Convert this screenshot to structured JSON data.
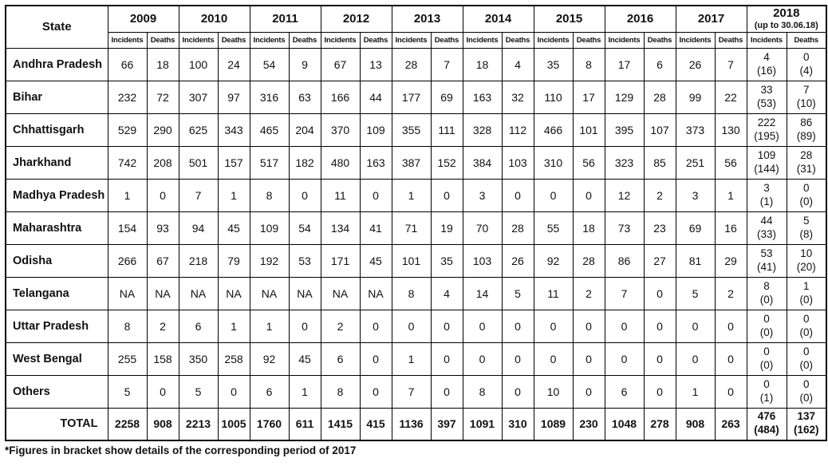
{
  "table": {
    "state_header": "State",
    "col_subheaders": [
      "Incidents",
      "Deaths"
    ],
    "years": [
      {
        "label": "2009"
      },
      {
        "label": "2010"
      },
      {
        "label": "2011"
      },
      {
        "label": "2012"
      },
      {
        "label": "2013"
      },
      {
        "label": "2014"
      },
      {
        "label": "2015"
      },
      {
        "label": "2016"
      },
      {
        "label": "2017"
      },
      {
        "label": "2018",
        "sublabel": "(up to 30.06.18)"
      }
    ],
    "rows": [
      {
        "state": "Andhra Pradesh",
        "cells": [
          "66",
          "18",
          "100",
          "24",
          "54",
          "9",
          "67",
          "13",
          "28",
          "7",
          "18",
          "4",
          "35",
          "8",
          "17",
          "6",
          "26",
          "7",
          [
            "4",
            "(16)"
          ],
          [
            "0",
            "(4)"
          ]
        ]
      },
      {
        "state": "Bihar",
        "cells": [
          "232",
          "72",
          "307",
          "97",
          "316",
          "63",
          "166",
          "44",
          "177",
          "69",
          "163",
          "32",
          "110",
          "17",
          "129",
          "28",
          "99",
          "22",
          [
            "33",
            "(53)"
          ],
          [
            "7",
            "(10)"
          ]
        ]
      },
      {
        "state": "Chhattisgarh",
        "cells": [
          "529",
          "290",
          "625",
          "343",
          "465",
          "204",
          "370",
          "109",
          "355",
          "111",
          "328",
          "112",
          "466",
          "101",
          "395",
          "107",
          "373",
          "130",
          [
            "222",
            "(195)"
          ],
          [
            "86",
            "(89)"
          ]
        ]
      },
      {
        "state": "Jharkhand",
        "cells": [
          "742",
          "208",
          "501",
          "157",
          "517",
          "182",
          "480",
          "163",
          "387",
          "152",
          "384",
          "103",
          "310",
          "56",
          "323",
          "85",
          "251",
          "56",
          [
            "109",
            "(144)"
          ],
          [
            "28",
            "(31)"
          ]
        ]
      },
      {
        "state": "Madhya Pradesh",
        "cells": [
          "1",
          "0",
          "7",
          "1",
          "8",
          "0",
          "11",
          "0",
          "1",
          "0",
          "3",
          "0",
          "0",
          "0",
          "12",
          "2",
          "3",
          "1",
          [
            "3",
            "(1)"
          ],
          [
            "0",
            "(0)"
          ]
        ]
      },
      {
        "state": "Maharashtra",
        "cells": [
          "154",
          "93",
          "94",
          "45",
          "109",
          "54",
          "134",
          "41",
          "71",
          "19",
          "70",
          "28",
          "55",
          "18",
          "73",
          "23",
          "69",
          "16",
          [
            "44",
            "(33)"
          ],
          [
            "5",
            "(8)"
          ]
        ]
      },
      {
        "state": "Odisha",
        "cells": [
          "266",
          "67",
          "218",
          "79",
          "192",
          "53",
          "171",
          "45",
          "101",
          "35",
          "103",
          "26",
          "92",
          "28",
          "86",
          "27",
          "81",
          "29",
          [
            "53",
            "(41)"
          ],
          [
            "10",
            "(20)"
          ]
        ]
      },
      {
        "state": "Telangana",
        "cells": [
          "NA",
          "NA",
          "NA",
          "NA",
          "NA",
          "NA",
          "NA",
          "NA",
          "8",
          "4",
          "14",
          "5",
          "11",
          "2",
          "7",
          "0",
          "5",
          "2",
          [
            "8",
            "(0)"
          ],
          [
            "1",
            "(0)"
          ]
        ]
      },
      {
        "state": "Uttar Pradesh",
        "cells": [
          "8",
          "2",
          "6",
          "1",
          "1",
          "0",
          "2",
          "0",
          "0",
          "0",
          "0",
          "0",
          "0",
          "0",
          "0",
          "0",
          "0",
          "0",
          [
            "0",
            "(0)"
          ],
          [
            "0",
            "(0)"
          ]
        ]
      },
      {
        "state": "West Bengal",
        "cells": [
          "255",
          "158",
          "350",
          "258",
          "92",
          "45",
          "6",
          "0",
          "1",
          "0",
          "0",
          "0",
          "0",
          "0",
          "0",
          "0",
          "0",
          "0",
          [
            "0",
            "(0)"
          ],
          [
            "0",
            "(0)"
          ]
        ]
      },
      {
        "state": "Others",
        "cells": [
          "5",
          "0",
          "5",
          "0",
          "6",
          "1",
          "8",
          "0",
          "7",
          "0",
          "8",
          "0",
          "10",
          "0",
          "6",
          "0",
          "1",
          "0",
          [
            "0",
            "(1)"
          ],
          [
            "0",
            "(0)"
          ]
        ]
      }
    ],
    "total_row": {
      "state": "TOTAL",
      "cells": [
        "2258",
        "908",
        "2213",
        "1005",
        "1760",
        "611",
        "1415",
        "415",
        "1136",
        "397",
        "1091",
        "310",
        "1089",
        "230",
        "1048",
        "278",
        "908",
        "263",
        [
          "476",
          "(484)"
        ],
        [
          "137",
          "(162)"
        ]
      ]
    }
  },
  "footnote": "*Figures in bracket show details of the corresponding period of 2017",
  "colors": {
    "border": "#000000",
    "text": "#111111",
    "background": "#ffffff"
  }
}
